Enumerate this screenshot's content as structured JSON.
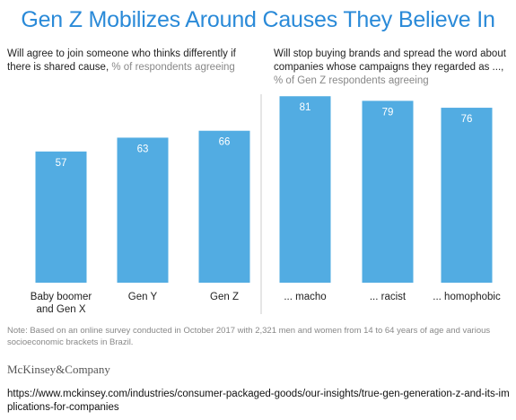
{
  "title": "Gen Z Mobilizes Around Causes They Believe In",
  "colors": {
    "title": "#2a8ad8",
    "bar": "#52ace2",
    "bar_label": "#ffffff",
    "divider": "#cccccc"
  },
  "chart_data": [
    {
      "type": "bar",
      "subtitle_main": "Will agree to join someone who thinks differently if there is shared cause,",
      "subtitle_unit": "% of respondents agreeing",
      "categories": [
        "Baby boomer and Gen X",
        "Gen Y",
        "Gen Z"
      ],
      "values": [
        57,
        63,
        66
      ],
      "ylim": [
        0,
        100
      ]
    },
    {
      "type": "bar",
      "subtitle_main": "Will stop buying brands and spread the word about companies whose campaigns they regarded as ...,",
      "subtitle_unit": "% of Gen Z respondents agreeing",
      "categories": [
        "... macho",
        "... racist",
        "... homophobic"
      ],
      "values": [
        81,
        79,
        76
      ],
      "ylim": [
        0,
        100
      ]
    }
  ],
  "note": "Note: Based on an online survey conducted in October 2017 with 2,321 men and women from 14 to 64 years of age and various socioeconomic brackets in Brazil.",
  "logo": "McKinsey&Company",
  "url": "https://www.mckinsey.com/industries/consumer-packaged-goods/our-insights/true-gen-generation-z-and-its-implications-for-companies"
}
